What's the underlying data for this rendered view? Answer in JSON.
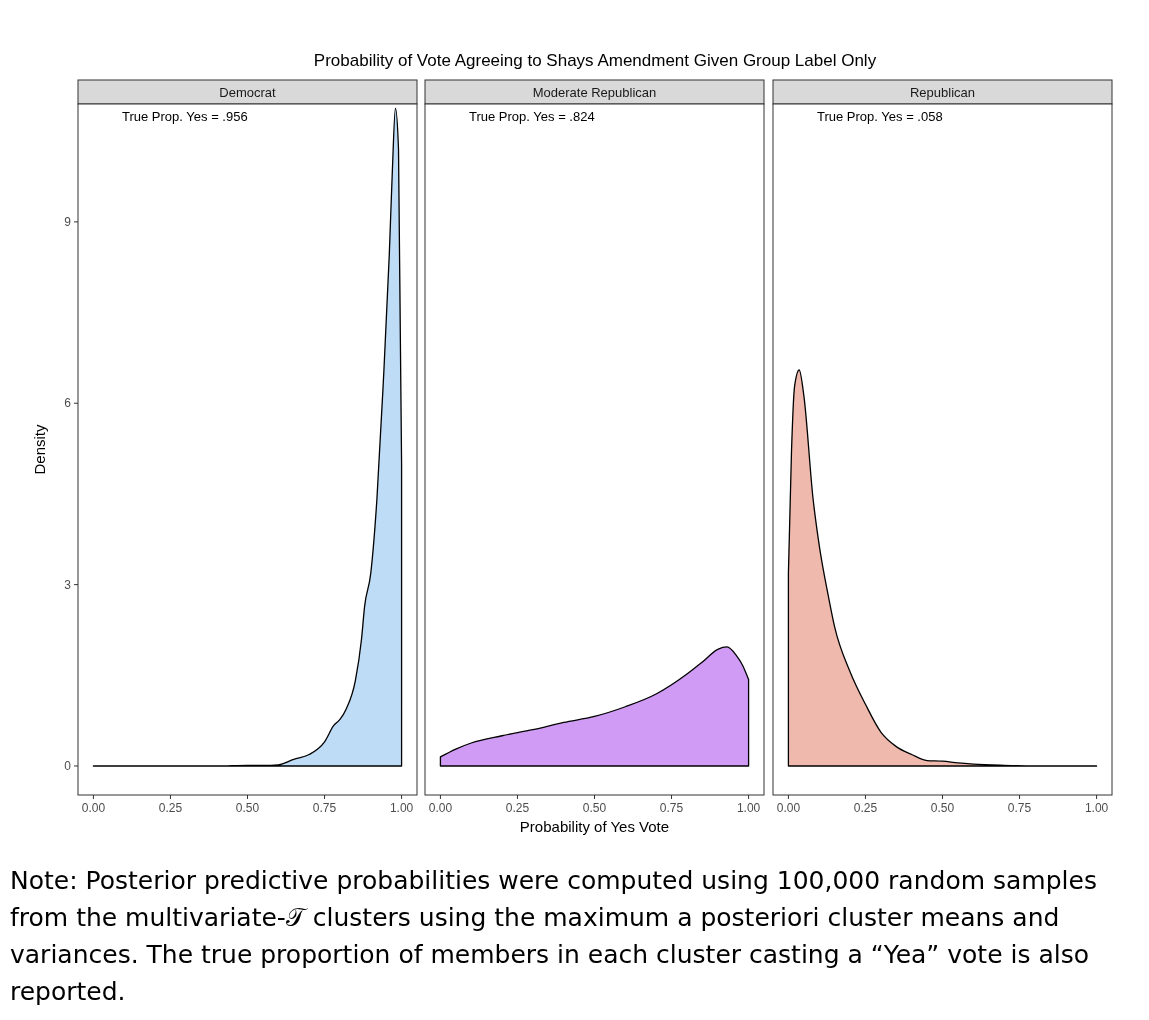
{
  "chart_data": [
    {
      "type": "area",
      "title": "Democrat",
      "ylabel": "Density",
      "annotations": [
        "True Prop. Yes = .956",
        "Probability of Vote Agreeing to Shays Amendment Given Group Label Only",
        "Note: Posterior predictive probabilities were computed using 100,000 random samples from the multivariate-𝒯 clusters using the maximum a posteriori cluster means and variances. The true proportion of members in each cluster casting a “Yea” vote is also reported."
      ],
      "x": [
        0,
        0.1,
        0.2,
        0.3,
        0.4,
        0.5,
        0.55,
        0.6,
        0.65,
        0.7,
        0.75,
        0.78,
        0.8,
        0.82,
        0.85,
        0.87,
        0.88,
        0.9,
        0.92,
        0.94,
        0.96,
        0.97,
        0.98,
        0.99,
        1.0
      ],
      "series": [
        {
          "color": "#bfdcf7",
          "values": [
            0,
            0,
            0,
            0,
            0,
            0.01,
            0.01,
            0.02,
            0.11,
            0.19,
            0.4,
            0.67,
            0.77,
            0.94,
            1.41,
            2.1,
            2.64,
            3.19,
            4.42,
            6.28,
            8.45,
            9.84,
            10.88,
            10.2,
            5
          ]
        }
      ],
      "xlim": [
        -0.05,
        1.05
      ],
      "ylim": [
        -0.48,
        10.95
      ],
      "xticks": [
        {
          "value": 0,
          "label": "0.00"
        },
        {
          "value": 0.25,
          "label": "0.25"
        },
        {
          "value": 0.5,
          "label": "0.50"
        },
        {
          "value": 0.75,
          "label": "0.75"
        },
        {
          "value": 1,
          "label": "1.00"
        }
      ],
      "yticks": [
        0,
        3,
        6,
        9
      ]
    },
    {
      "type": "area",
      "title": "Moderate Republican",
      "xlabel": "Probability of Yes Vote",
      "annotations": [
        "True Prop. Yes = .824"
      ],
      "x": [
        0,
        0.05,
        0.1,
        0.2,
        0.3,
        0.4,
        0.5,
        0.6,
        0.7,
        0.8,
        0.85,
        0.9,
        0.93,
        0.96,
        0.98,
        1.0
      ],
      "series": [
        {
          "color": "#cf9bf5",
          "values": [
            0.15,
            0.28,
            0.38,
            0.5,
            0.6,
            0.72,
            0.82,
            0.98,
            1.19,
            1.52,
            1.72,
            1.93,
            1.97,
            1.83,
            1.67,
            1.43
          ]
        }
      ],
      "xlim": [
        -0.05,
        1.05
      ],
      "ylim": [
        -0.48,
        10.95
      ],
      "xticks": [
        {
          "value": 0,
          "label": "0.00"
        },
        {
          "value": 0.25,
          "label": "0.25"
        },
        {
          "value": 0.5,
          "label": "0.50"
        },
        {
          "value": 0.75,
          "label": "0.75"
        },
        {
          "value": 1,
          "label": "1.00"
        }
      ],
      "yticks": [
        0,
        3,
        6,
        9
      ],
      "tick_labels": "x"
    },
    {
      "type": "area",
      "title": "Republican",
      "annotations": [
        "True Prop. Yes = .058"
      ],
      "x": [
        0,
        0.01,
        0.02,
        0.035,
        0.05,
        0.08,
        0.1,
        0.13,
        0.15,
        0.2,
        0.25,
        0.3,
        0.35,
        0.4,
        0.45,
        0.5,
        0.55,
        0.6,
        0.7,
        0.8,
        0.9,
        1.0
      ],
      "series": [
        {
          "color": "#efbaad",
          "values": [
            3.19,
            5.2,
            6.28,
            6.55,
            6.13,
            4.42,
            3.65,
            2.8,
            2.3,
            1.56,
            1.02,
            0.56,
            0.32,
            0.19,
            0.09,
            0.08,
            0.05,
            0.03,
            0.01,
            0,
            0,
            0
          ]
        }
      ],
      "xlim": [
        -0.05,
        1.05
      ],
      "ylim": [
        -0.48,
        10.95
      ],
      "xticks": [
        {
          "value": 0,
          "label": "0.00"
        },
        {
          "value": 0.25,
          "label": "0.25"
        },
        {
          "value": 0.5,
          "label": "0.50"
        },
        {
          "value": 0.75,
          "label": "0.75"
        },
        {
          "value": 1,
          "label": "1.00"
        }
      ],
      "yticks": [
        0,
        3,
        6,
        9
      ],
      "tick_labels": "x"
    }
  ]
}
